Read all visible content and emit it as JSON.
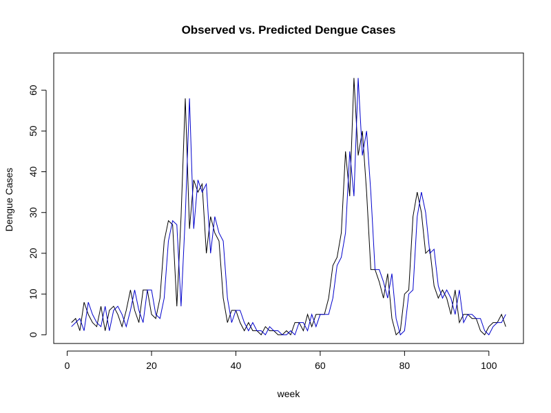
{
  "chart_data": {
    "type": "line",
    "title": "Observed vs. Predicted Dengue Cases",
    "xlabel": "week",
    "ylabel": "Dengue Cases",
    "xlim": [
      1,
      104
    ],
    "ylim": [
      0,
      63
    ],
    "x_ticks": [
      0,
      20,
      40,
      60,
      80,
      100
    ],
    "y_ticks": [
      0,
      10,
      20,
      30,
      40,
      50,
      60
    ],
    "grid": false,
    "series": [
      {
        "color": "#000000",
        "x": [
          1,
          2,
          3,
          4,
          5,
          6,
          7,
          8,
          9,
          10,
          11,
          12,
          13,
          14,
          15,
          16,
          17,
          18,
          19,
          20,
          21,
          22,
          23,
          24,
          25,
          26,
          27,
          28,
          29,
          30,
          31,
          32,
          33,
          34,
          35,
          36,
          37,
          38,
          39,
          40,
          41,
          42,
          43,
          44,
          45,
          46,
          47,
          48,
          49,
          50,
          51,
          52,
          53,
          54,
          55,
          56,
          57,
          58,
          59,
          60,
          61,
          62,
          63,
          64,
          65,
          66,
          67,
          68,
          69,
          70,
          71,
          72,
          73,
          74,
          75,
          76,
          77,
          78,
          79,
          80,
          81,
          82,
          83,
          84,
          85,
          86,
          87,
          88,
          89,
          90,
          91,
          92,
          93,
          94,
          95,
          96,
          97,
          98,
          99,
          100,
          101,
          102,
          103,
          104
        ],
        "values": [
          3,
          4,
          1,
          8,
          5,
          3,
          2,
          7,
          1,
          6,
          7,
          5,
          2,
          6,
          11,
          6,
          3,
          11,
          11,
          5,
          4,
          9,
          23,
          28,
          27,
          7,
          29,
          58,
          26,
          38,
          35,
          37,
          20,
          29,
          25,
          23,
          9,
          3,
          6,
          6,
          3,
          1,
          3,
          1,
          1,
          0,
          2,
          1,
          1,
          0,
          0,
          1,
          0,
          3,
          3,
          1,
          5,
          2,
          5,
          5,
          5,
          9,
          17,
          19,
          25,
          45,
          34,
          63,
          44,
          50,
          35,
          16,
          16,
          13,
          9,
          15,
          4,
          0,
          1,
          10,
          11,
          29,
          35,
          30,
          20,
          21,
          12,
          9,
          11,
          9,
          5,
          11,
          3,
          5,
          5,
          4,
          4,
          1,
          0,
          2,
          3,
          3,
          5,
          2
        ]
      },
      {
        "color": "#0000cc",
        "x": [
          1,
          2,
          3,
          4,
          5,
          6,
          7,
          8,
          9,
          10,
          11,
          12,
          13,
          14,
          15,
          16,
          17,
          18,
          19,
          20,
          21,
          22,
          23,
          24,
          25,
          26,
          27,
          28,
          29,
          30,
          31,
          32,
          33,
          34,
          35,
          36,
          37,
          38,
          39,
          40,
          41,
          42,
          43,
          44,
          45,
          46,
          47,
          48,
          49,
          50,
          51,
          52,
          53,
          54,
          55,
          56,
          57,
          58,
          59,
          60,
          61,
          62,
          63,
          64,
          65,
          66,
          67,
          68,
          69,
          70,
          71,
          72,
          73,
          74,
          75,
          76,
          77,
          78,
          79,
          80,
          81,
          82,
          83,
          84,
          85,
          86,
          87,
          88,
          89,
          90,
          91,
          92,
          93,
          94,
          95,
          96,
          97,
          98,
          99,
          100,
          101,
          102,
          103,
          104
        ],
        "values": [
          2,
          3,
          4,
          1,
          8,
          5,
          3,
          2,
          7,
          1,
          6,
          7,
          5,
          2,
          6,
          11,
          6,
          3,
          11,
          11,
          5,
          4,
          9,
          23,
          28,
          27,
          7,
          29,
          58,
          26,
          38,
          35,
          37,
          20,
          29,
          25,
          23,
          9,
          3,
          6,
          6,
          3,
          1,
          3,
          1,
          1,
          0,
          2,
          1,
          1,
          0,
          0,
          1,
          0,
          3,
          3,
          1,
          5,
          2,
          5,
          5,
          5,
          9,
          17,
          19,
          25,
          45,
          34,
          63,
          44,
          50,
          35,
          16,
          16,
          13,
          9,
          15,
          4,
          0,
          1,
          10,
          11,
          29,
          35,
          30,
          20,
          21,
          12,
          9,
          11,
          9,
          5,
          11,
          3,
          5,
          5,
          4,
          4,
          1,
          0,
          2,
          3,
          3,
          5
        ]
      }
    ]
  }
}
